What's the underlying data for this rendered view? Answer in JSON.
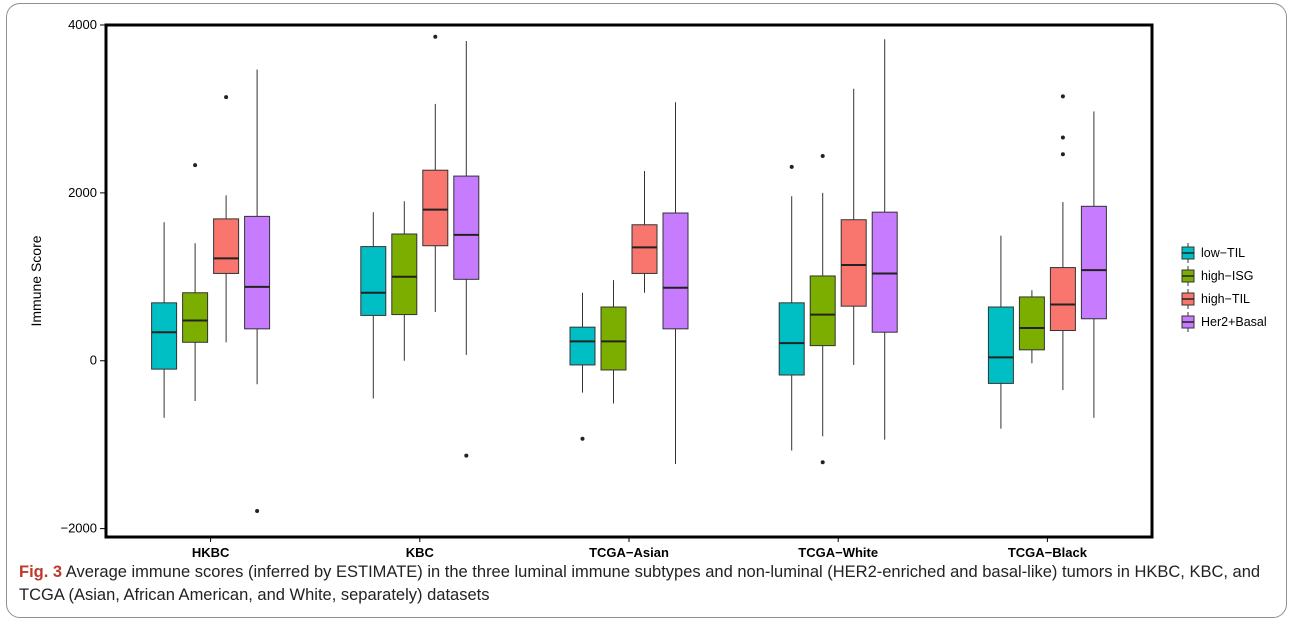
{
  "caption": {
    "label": "Fig. 3",
    "text": " Average immune scores (inferred by ESTIMATE) in the three luminal immune subtypes and non-luminal (HER2-enriched and basal-like) tumors in HKBC, KBC, and TCGA (Asian, African American, and White, separately) datasets"
  },
  "chart_data": {
    "type": "box",
    "title": "",
    "xlabel": "",
    "ylabel": "Immune Score",
    "ylim": [
      -2100,
      4000
    ],
    "yticks": [
      -2000,
      0,
      2000,
      4000
    ],
    "ytick_labels": [
      "−2000",
      "0",
      "2000",
      "4000"
    ],
    "grid": false,
    "legend_position": "right",
    "categories": [
      "HKBC",
      "KBC",
      "TCGA−Asian",
      "TCGA−White",
      "TCGA−Black"
    ],
    "series": [
      {
        "name": "low−TIL",
        "color": "#00bfc4",
        "boxes": [
          {
            "min": -680,
            "q1": -100,
            "median": 340,
            "q3": 690,
            "max": 1650,
            "outliers": []
          },
          {
            "min": -450,
            "q1": 540,
            "median": 810,
            "q3": 1360,
            "max": 1770,
            "outliers": []
          },
          {
            "min": -380,
            "q1": -50,
            "median": 230,
            "q3": 400,
            "max": 810,
            "outliers": [
              -930
            ]
          },
          {
            "min": -1070,
            "q1": -170,
            "median": 210,
            "q3": 690,
            "max": 1960,
            "outliers": [
              2310
            ]
          },
          {
            "min": -810,
            "q1": -270,
            "median": 40,
            "q3": 640,
            "max": 1490,
            "outliers": []
          }
        ]
      },
      {
        "name": "high−ISG",
        "color": "#7cae00",
        "boxes": [
          {
            "min": -480,
            "q1": 220,
            "median": 480,
            "q3": 810,
            "max": 1400,
            "outliers": [
              2330
            ]
          },
          {
            "min": 0,
            "q1": 550,
            "median": 1000,
            "q3": 1510,
            "max": 1900,
            "outliers": []
          },
          {
            "min": -510,
            "q1": -110,
            "median": 230,
            "q3": 640,
            "max": 960,
            "outliers": []
          },
          {
            "min": -900,
            "q1": 180,
            "median": 550,
            "q3": 1010,
            "max": 2000,
            "outliers": [
              2440,
              -1210
            ]
          },
          {
            "min": -30,
            "q1": 130,
            "median": 390,
            "q3": 760,
            "max": 840,
            "outliers": []
          }
        ]
      },
      {
        "name": "high−TIL",
        "color": "#f8766d",
        "boxes": [
          {
            "min": 220,
            "q1": 1040,
            "median": 1220,
            "q3": 1690,
            "max": 1970,
            "outliers": [
              3140
            ]
          },
          {
            "min": 580,
            "q1": 1370,
            "median": 1800,
            "q3": 2270,
            "max": 3060,
            "outliers": [
              3860
            ]
          },
          {
            "min": 810,
            "q1": 1040,
            "median": 1350,
            "q3": 1620,
            "max": 2260,
            "outliers": []
          },
          {
            "min": -50,
            "q1": 650,
            "median": 1140,
            "q3": 1680,
            "max": 3240,
            "outliers": []
          },
          {
            "min": -350,
            "q1": 360,
            "median": 670,
            "q3": 1110,
            "max": 1890,
            "outliers": [
              3150,
              2660,
              2460
            ]
          }
        ]
      },
      {
        "name": "Her2+Basal",
        "color": "#c77cff",
        "boxes": [
          {
            "min": -280,
            "q1": 380,
            "median": 880,
            "q3": 1720,
            "max": 3470,
            "outliers": [
              -1790
            ]
          },
          {
            "min": 70,
            "q1": 970,
            "median": 1500,
            "q3": 2200,
            "max": 3810,
            "outliers": [
              -1130
            ]
          },
          {
            "min": -1230,
            "q1": 380,
            "median": 870,
            "q3": 1760,
            "max": 3080,
            "outliers": []
          },
          {
            "min": -940,
            "q1": 340,
            "median": 1040,
            "q3": 1770,
            "max": 3830,
            "outliers": []
          },
          {
            "min": -680,
            "q1": 500,
            "median": 1080,
            "q3": 1840,
            "max": 2970,
            "outliers": []
          }
        ]
      }
    ]
  }
}
